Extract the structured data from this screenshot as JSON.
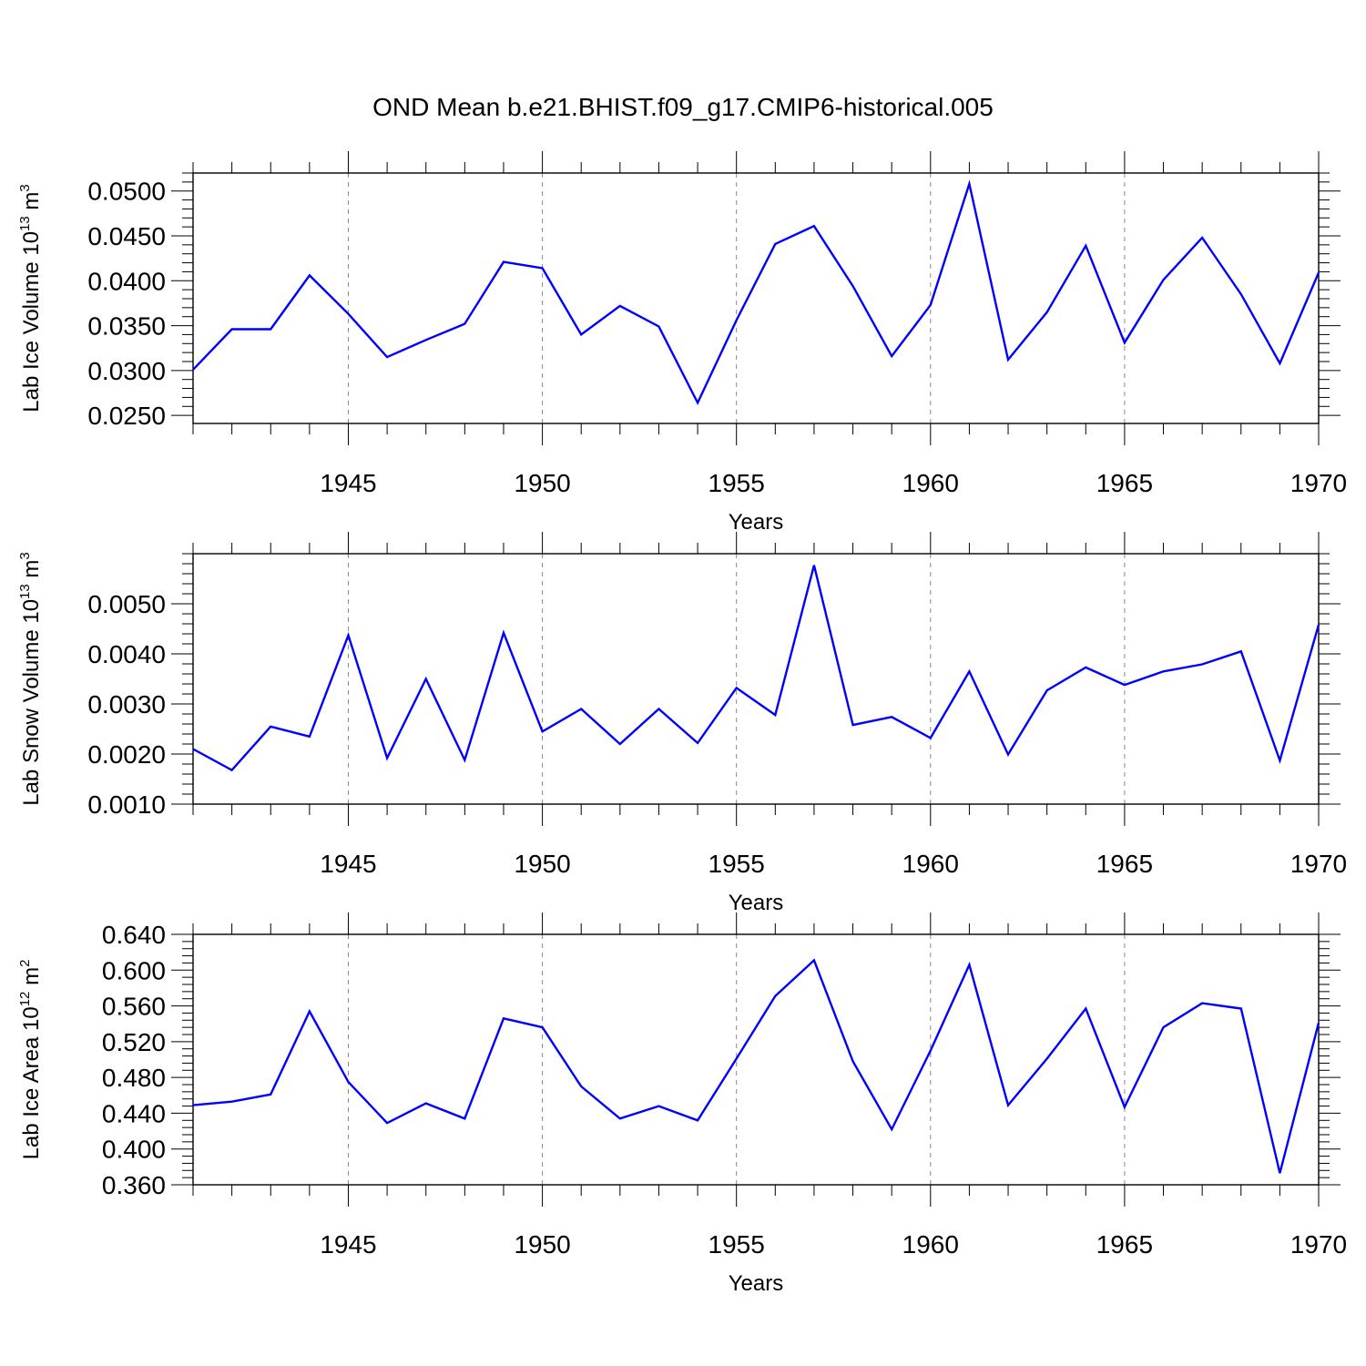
{
  "title": "OND Mean b.e21.BHIST.f09_g17.CMIP6-historical.005",
  "colors": {
    "line": "#0000ff",
    "axis": "#000000",
    "grid": "#888888"
  },
  "chart_data": [
    {
      "type": "line",
      "ylabel": {
        "main": "Lab Ice Volume 10",
        "sup": "13",
        "unit": " m",
        "unit_sup": "3"
      },
      "xlabel": "Years",
      "xlim": [
        1941,
        1970
      ],
      "ylim": [
        0.0241,
        0.052
      ],
      "xticks": [
        1945,
        1950,
        1955,
        1960,
        1965,
        1970
      ],
      "xtick_labels": [
        "1945",
        "1950",
        "1955",
        "1960",
        "1965",
        "1970"
      ],
      "yticks": [
        0.025,
        0.03,
        0.035,
        0.04,
        0.045,
        0.05
      ],
      "ytick_labels": [
        "0.0250",
        "0.0300",
        "0.0350",
        "0.0400",
        "0.0450",
        "0.0500"
      ],
      "x": [
        1941,
        1942,
        1943,
        1944,
        1945,
        1946,
        1947,
        1948,
        1949,
        1950,
        1951,
        1952,
        1953,
        1954,
        1955,
        1956,
        1957,
        1958,
        1959,
        1960,
        1961,
        1962,
        1963,
        1964,
        1965,
        1966,
        1967,
        1968,
        1969,
        1970
      ],
      "values": [
        0.0301,
        0.0346,
        0.0346,
        0.0406,
        0.0363,
        0.0315,
        0.0334,
        0.0352,
        0.0421,
        0.0414,
        0.034,
        0.0372,
        0.0349,
        0.0264,
        0.0356,
        0.0441,
        0.0461,
        0.0394,
        0.0316,
        0.0373,
        0.0508,
        0.0312,
        0.0365,
        0.0439,
        0.0331,
        0.0401,
        0.0448,
        0.0385,
        0.0308,
        0.0409
      ],
      "grid": "vertical dashed at major x ticks"
    },
    {
      "type": "line",
      "ylabel": {
        "main": "Lab Snow Volume 10",
        "sup": "13",
        "unit": " m",
        "unit_sup": "3"
      },
      "xlabel": "Years",
      "xlim": [
        1941,
        1970
      ],
      "ylim": [
        0.001,
        0.006
      ],
      "xticks": [
        1945,
        1950,
        1955,
        1960,
        1965,
        1970
      ],
      "xtick_labels": [
        "1945",
        "1950",
        "1955",
        "1960",
        "1965",
        "1970"
      ],
      "yticks": [
        0.001,
        0.002,
        0.003,
        0.004,
        0.005
      ],
      "ytick_labels": [
        "0.0010",
        "0.0020",
        "0.0030",
        "0.0040",
        "0.0050"
      ],
      "x": [
        1941,
        1942,
        1943,
        1944,
        1945,
        1946,
        1947,
        1948,
        1949,
        1950,
        1951,
        1952,
        1953,
        1954,
        1955,
        1956,
        1957,
        1958,
        1959,
        1960,
        1961,
        1962,
        1963,
        1964,
        1965,
        1966,
        1967,
        1968,
        1969,
        1970
      ],
      "values": [
        0.0021,
        0.00168,
        0.00255,
        0.00235,
        0.00437,
        0.00192,
        0.0035,
        0.00188,
        0.00442,
        0.00245,
        0.0029,
        0.0022,
        0.0029,
        0.00222,
        0.00332,
        0.00278,
        0.00577,
        0.00258,
        0.00274,
        0.00232,
        0.00365,
        0.00199,
        0.00327,
        0.00373,
        0.00338,
        0.00365,
        0.00379,
        0.00405,
        0.00187,
        0.00458
      ],
      "grid": "vertical dashed at major x ticks"
    },
    {
      "type": "line",
      "ylabel": {
        "main": "Lab Ice Area 10",
        "sup": "12",
        "unit": " m",
        "unit_sup": "2"
      },
      "xlabel": "Years",
      "xlim": [
        1941,
        1970
      ],
      "ylim": [
        0.36,
        0.64
      ],
      "xticks": [
        1945,
        1950,
        1955,
        1960,
        1965,
        1970
      ],
      "xtick_labels": [
        "1945",
        "1950",
        "1955",
        "1960",
        "1965",
        "1970"
      ],
      "yticks": [
        0.36,
        0.4,
        0.44,
        0.48,
        0.52,
        0.56,
        0.6,
        0.64
      ],
      "ytick_labels": [
        "0.360",
        "0.400",
        "0.440",
        "0.480",
        "0.520",
        "0.560",
        "0.600",
        "0.640"
      ],
      "x": [
        1941,
        1942,
        1943,
        1944,
        1945,
        1946,
        1947,
        1948,
        1949,
        1950,
        1951,
        1952,
        1953,
        1954,
        1955,
        1956,
        1957,
        1958,
        1959,
        1960,
        1961,
        1962,
        1963,
        1964,
        1965,
        1966,
        1967,
        1968,
        1969,
        1970
      ],
      "values": [
        0.449,
        0.453,
        0.461,
        0.554,
        0.475,
        0.429,
        0.451,
        0.434,
        0.546,
        0.536,
        0.47,
        0.434,
        0.448,
        0.432,
        0.501,
        0.571,
        0.611,
        0.498,
        0.422,
        0.51,
        0.606,
        0.449,
        0.501,
        0.557,
        0.447,
        0.536,
        0.563,
        0.557,
        0.373,
        0.541
      ],
      "grid": "vertical dashed at major x ticks"
    }
  ]
}
